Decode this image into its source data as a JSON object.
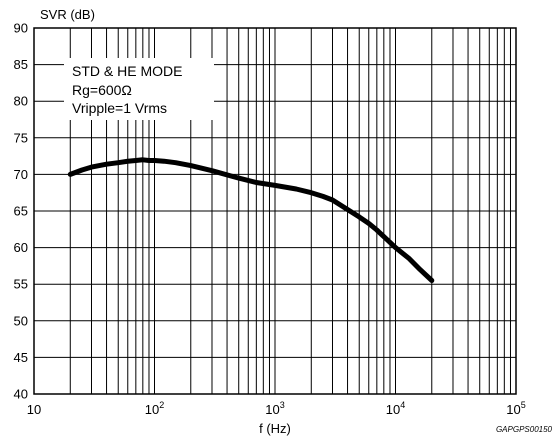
{
  "chart_data": {
    "type": "line",
    "title": "",
    "ylabel": "SVR (dB)",
    "xlabel": "f (Hz)",
    "x_scale": "log",
    "xlim": [
      10,
      100000
    ],
    "ylim": [
      40,
      90
    ],
    "y_ticks": [
      "40",
      "45",
      "50",
      "55",
      "60",
      "65",
      "70",
      "75",
      "80",
      "85",
      "90"
    ],
    "x_ticks": [
      {
        "base": "10",
        "exp": ""
      },
      {
        "base": "10",
        "exp": "2"
      },
      {
        "base": "10",
        "exp": "3"
      },
      {
        "base": "10",
        "exp": "4"
      },
      {
        "base": "10",
        "exp": "5"
      }
    ],
    "grid": true,
    "annotation_lines": [
      "STD & HE MODE",
      "Rg=600Ω",
      "Vripple=1 Vrms"
    ],
    "watermark": "GAPGPS00150",
    "series": [
      {
        "x": [
          20,
          25,
          30,
          40,
          50,
          60,
          70,
          80,
          90,
          100,
          120,
          150,
          200,
          300,
          500,
          700,
          1000,
          1500,
          2000,
          2500,
          3000,
          4000,
          5000,
          6000,
          7000,
          8000,
          10000,
          13000,
          16000,
          20000
        ],
        "y": [
          70.0,
          70.6,
          71.0,
          71.4,
          71.6,
          71.8,
          71.9,
          72.0,
          71.9,
          71.9,
          71.8,
          71.6,
          71.2,
          70.5,
          69.5,
          68.9,
          68.5,
          68.0,
          67.5,
          67.0,
          66.5,
          65.2,
          64.2,
          63.3,
          62.4,
          61.5,
          60.0,
          58.5,
          57.0,
          55.5
        ]
      }
    ]
  }
}
